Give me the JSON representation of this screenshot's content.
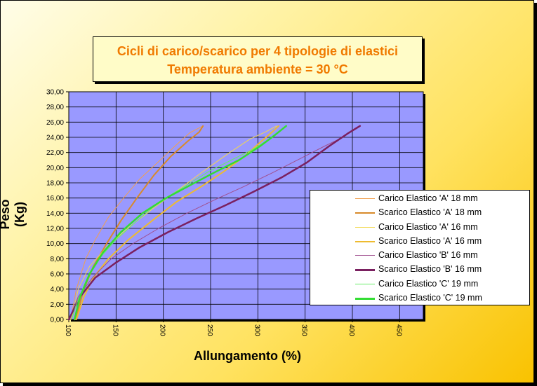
{
  "chart_data": {
    "type": "line",
    "title": [
      "Cicli di carico/scarico per 4 tipologie di elastici",
      "Temperatura ambiente = 30 °C"
    ],
    "xlabel": "Allungamento (%)",
    "ylabel": "Peso (Kg)",
    "xlim": [
      100,
      475
    ],
    "ylim": [
      0,
      30
    ],
    "x_ticks": [
      "100",
      "150",
      "200",
      "250",
      "300",
      "350",
      "400",
      "450"
    ],
    "y_ticks": [
      "0,00",
      "2,00",
      "4,00",
      "6,00",
      "8,00",
      "10,00",
      "12,00",
      "14,00",
      "16,00",
      "18,00",
      "20,00",
      "22,00",
      "24,00",
      "26,00",
      "28,00",
      "30,00"
    ],
    "grid": true,
    "plot_background": "#9999ff",
    "legend_position": "right",
    "series": [
      {
        "name": "Carico Elastico 'A' 18 mm",
        "color": "#f0a050",
        "width": 1,
        "points": [
          [
            102,
            0
          ],
          [
            108,
            4
          ],
          [
            118,
            8
          ],
          [
            128,
            10.5
          ],
          [
            142,
            13.5
          ],
          [
            158,
            16
          ],
          [
            175,
            18.5
          ],
          [
            195,
            20.8
          ],
          [
            212,
            22.8
          ],
          [
            228,
            24.6
          ],
          [
            242,
            25.5
          ]
        ]
      },
      {
        "name": "Scarico Elastico 'A' 18 mm",
        "color": "#d88a2a",
        "width": 2,
        "points": [
          [
            107,
            0
          ],
          [
            116,
            4
          ],
          [
            126,
            7
          ],
          [
            140,
            10
          ],
          [
            155,
            13
          ],
          [
            172,
            16
          ],
          [
            190,
            19
          ],
          [
            208,
            21.5
          ],
          [
            226,
            23.5
          ],
          [
            238,
            24.7
          ],
          [
            242,
            25.5
          ]
        ]
      },
      {
        "name": "Carico Elastico 'A' 16 mm",
        "color": "#f2d850",
        "width": 1,
        "points": [
          [
            103,
            0
          ],
          [
            110,
            4
          ],
          [
            122,
            7
          ],
          [
            140,
            9.5
          ],
          [
            162,
            12
          ],
          [
            188,
            14.5
          ],
          [
            215,
            17
          ],
          [
            242,
            19.5
          ],
          [
            268,
            21.8
          ],
          [
            292,
            23.8
          ],
          [
            308,
            24.7
          ],
          [
            320,
            25.5
          ]
        ]
      },
      {
        "name": "Scarico Elastico 'A' 16 mm",
        "color": "#eebb30",
        "width": 2,
        "points": [
          [
            108,
            0
          ],
          [
            116,
            3
          ],
          [
            126,
            5.5
          ],
          [
            142,
            8
          ],
          [
            163,
            10.5
          ],
          [
            188,
            13
          ],
          [
            214,
            15.5
          ],
          [
            240,
            17.5
          ],
          [
            264,
            19.5
          ],
          [
            286,
            21.5
          ],
          [
            304,
            23.5
          ],
          [
            316,
            24.8
          ],
          [
            322,
            25.5
          ]
        ]
      },
      {
        "name": "Carico Elastico 'B' 16 mm",
        "color": "#a05090",
        "width": 1,
        "points": [
          [
            100,
            0
          ],
          [
            110,
            3
          ],
          [
            125,
            5.5
          ],
          [
            145,
            8
          ],
          [
            168,
            10
          ],
          [
            195,
            12
          ],
          [
            225,
            14
          ],
          [
            255,
            15.8
          ],
          [
            285,
            17.5
          ],
          [
            315,
            19.3
          ],
          [
            345,
            21.2
          ],
          [
            370,
            22.8
          ],
          [
            390,
            24
          ],
          [
            402,
            25
          ],
          [
            408,
            25.5
          ]
        ]
      },
      {
        "name": "Scarico Elastico 'B' 16 mm",
        "color": "#7a2060",
        "width": 2.5,
        "points": [
          [
            100,
            0
          ],
          [
            112,
            3
          ],
          [
            128,
            5.5
          ],
          [
            150,
            7.5
          ],
          [
            175,
            9.5
          ],
          [
            205,
            11.5
          ],
          [
            235,
            13.3
          ],
          [
            265,
            15
          ],
          [
            295,
            16.8
          ],
          [
            325,
            18.7
          ],
          [
            352,
            20.7
          ],
          [
            375,
            22.8
          ],
          [
            395,
            24.5
          ],
          [
            408,
            25.5
          ]
        ]
      },
      {
        "name": "Carico Elastico 'C' 19 mm",
        "color": "#66ee66",
        "width": 1,
        "points": [
          [
            103,
            0
          ],
          [
            108,
            2
          ],
          [
            118,
            5
          ],
          [
            132,
            8
          ],
          [
            150,
            10.5
          ],
          [
            172,
            13
          ],
          [
            196,
            15.5
          ],
          [
            222,
            17.5
          ],
          [
            248,
            19.5
          ],
          [
            272,
            21
          ],
          [
            296,
            22.5
          ],
          [
            315,
            24
          ],
          [
            328,
            25.3
          ]
        ]
      },
      {
        "name": "Scarico Elastico 'C' 19 mm",
        "color": "#33dd33",
        "width": 2.5,
        "points": [
          [
            106,
            0
          ],
          [
            112,
            3
          ],
          [
            122,
            6
          ],
          [
            136,
            8.8
          ],
          [
            155,
            11.5
          ],
          [
            178,
            14
          ],
          [
            203,
            16
          ],
          [
            230,
            17.8
          ],
          [
            256,
            19.5
          ],
          [
            280,
            21
          ],
          [
            302,
            22.8
          ],
          [
            318,
            24.3
          ],
          [
            330,
            25.5
          ]
        ]
      }
    ]
  }
}
